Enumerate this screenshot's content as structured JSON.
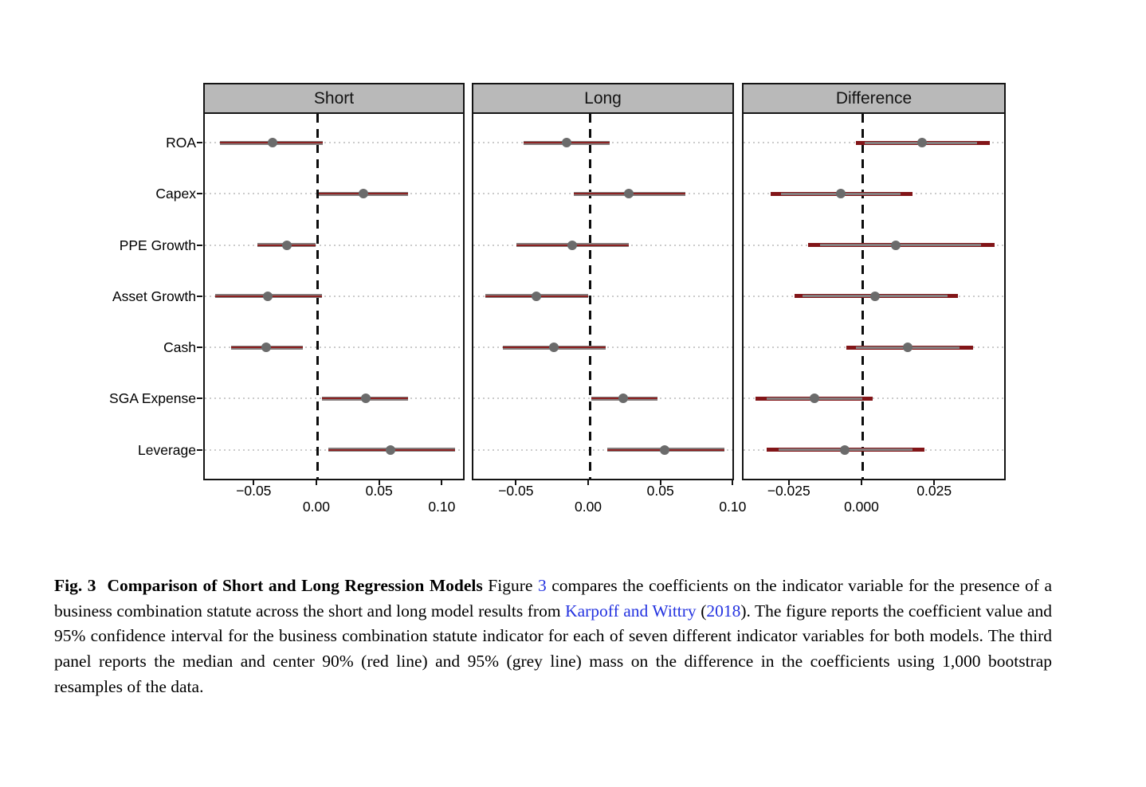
{
  "figure": {
    "panel_titles": [
      "Short",
      "Long",
      "Difference"
    ],
    "categories": [
      "ROA",
      "Capex",
      "PPE Growth",
      "Asset Growth",
      "Cash",
      "SGA Expense",
      "Leverage"
    ]
  },
  "colors": {
    "header_fill": "#b9b9b9",
    "panel_border": "#141414",
    "grey_band": "#857d7d",
    "red_band": "#8b2222",
    "diff_red_band": "#821518",
    "dot": "#6b6b6b",
    "gridline": "#cbcbcb",
    "link_blue": "#2433e0"
  },
  "chart_data": {
    "type": "scatter",
    "subtype": "forest-interval-plot",
    "title": "Comparison of Short and Long Regression Models",
    "categories": [
      "ROA",
      "Capex",
      "PPE Growth",
      "Asset Growth",
      "Cash",
      "SGA Expense",
      "Leverage"
    ],
    "legend_note": "grey dot = coefficient / median; short & long panels: grey band with red centre = 95% CI; difference panel: red band = center 90% mass, grey band = 95% mass (per caption)",
    "panels": [
      {
        "title": "Short",
        "xlim": [
          -0.0902,
          0.1182
        ],
        "ticks": [
          -0.05,
          0.0,
          0.05,
          0.1
        ],
        "tick_labels": [
          "−0.05",
          "0.00",
          "0.05",
          "0.10"
        ],
        "tick_rows": [
          "upper",
          "lower",
          "upper",
          "lower"
        ],
        "rows": [
          {
            "category": "ROA",
            "estimate": -0.036,
            "ci95": [
              -0.078,
              0.004
            ]
          },
          {
            "category": "Capex",
            "estimate": 0.036,
            "ci95": [
              0.0005,
              0.072
            ]
          },
          {
            "category": "PPE Growth",
            "estimate": -0.025,
            "ci95": [
              -0.048,
              -0.002
            ]
          },
          {
            "category": "Asset Growth",
            "estimate": -0.04,
            "ci95": [
              -0.082,
              0.003
            ]
          },
          {
            "category": "Cash",
            "estimate": -0.041,
            "ci95": [
              -0.069,
              -0.012
            ]
          },
          {
            "category": "SGA Expense",
            "estimate": 0.038,
            "ci95": [
              0.003,
              0.072
            ]
          },
          {
            "category": "Leverage",
            "estimate": 0.058,
            "ci95": [
              0.008,
              0.109
            ]
          }
        ]
      },
      {
        "title": "Long",
        "xlim": [
          -0.0805,
          0.1009
        ],
        "ticks": [
          -0.05,
          0.0,
          0.05,
          0.1
        ],
        "tick_labels": [
          "−0.05",
          "0.00",
          "0.05",
          "0.10"
        ],
        "tick_rows": [
          "upper",
          "lower",
          "upper",
          "lower"
        ],
        "rows": [
          {
            "category": "ROA",
            "estimate": -0.016,
            "ci95": [
              -0.046,
              0.014
            ]
          },
          {
            "category": "Capex",
            "estimate": 0.027,
            "ci95": [
              -0.011,
              0.066
            ]
          },
          {
            "category": "PPE Growth",
            "estimate": -0.012,
            "ci95": [
              -0.051,
              0.027
            ]
          },
          {
            "category": "Asset Growth",
            "estimate": -0.037,
            "ci95": [
              -0.072,
              -0.001
            ]
          },
          {
            "category": "Cash",
            "estimate": -0.025,
            "ci95": [
              -0.06,
              0.011
            ]
          },
          {
            "category": "SGA Expense",
            "estimate": 0.023,
            "ci95": [
              0.001,
              0.047
            ]
          },
          {
            "category": "Leverage",
            "estimate": 0.052,
            "ci95": [
              0.012,
              0.093
            ]
          }
        ]
      },
      {
        "title": "Difference",
        "xlim": [
          -0.0411,
          0.0496
        ],
        "ticks": [
          -0.025,
          0.0,
          0.025
        ],
        "tick_labels": [
          "−0.025",
          "0.000",
          "0.025"
        ],
        "tick_rows": [
          "upper",
          "lower",
          "upper"
        ],
        "rows": [
          {
            "category": "ROA",
            "median": 0.0203,
            "band_red": [
              -0.0026,
              0.0437
            ],
            "band_grey": [
              0.0006,
              0.0391
            ]
          },
          {
            "category": "Capex",
            "median": -0.0076,
            "band_red": [
              -0.0319,
              0.0171
            ],
            "band_grey": [
              -0.0282,
              0.013
            ]
          },
          {
            "category": "PPE Growth",
            "median": 0.0112,
            "band_red": [
              -0.019,
              0.0451
            ],
            "band_grey": [
              -0.0149,
              0.0405
            ]
          },
          {
            "category": "Asset Growth",
            "median": 0.004,
            "band_red": [
              -0.0236,
              0.0327
            ],
            "band_grey": [
              -0.0209,
              0.029
            ]
          },
          {
            "category": "Cash",
            "median": 0.0153,
            "band_red": [
              -0.0058,
              0.0377
            ],
            "band_grey": [
              -0.0026,
              0.0332
            ]
          },
          {
            "category": "SGA Expense",
            "median": -0.0168,
            "band_red": [
              -0.0369,
              0.0034
            ],
            "band_grey": [
              -0.0332,
              -0.0003
            ]
          },
          {
            "category": "Leverage",
            "median": -0.0064,
            "band_red": [
              -0.0332,
              0.0212
            ],
            "band_grey": [
              -0.0291,
              0.0171
            ]
          }
        ]
      }
    ]
  },
  "caption": {
    "segments": [
      {
        "name": "caption-fig-number",
        "style": "bold",
        "text": "Fig. 3"
      },
      {
        "name": "caption-fig-title",
        "style": "bold-gap",
        "text": "Comparison of Short and Long Regression Models"
      },
      {
        "name": "caption-text-1",
        "style": "normal",
        "text": " Figure "
      },
      {
        "name": "figure-ref-link",
        "style": "link",
        "text": "3"
      },
      {
        "name": "caption-text-2",
        "style": "normal",
        "text": " compares the coefficients on the indicator variable for the presence of a business combination statute across the short and long model results from "
      },
      {
        "name": "citation-link",
        "style": "link",
        "text": "Karpoff and Wittry"
      },
      {
        "name": "caption-text-3",
        "style": "normal",
        "text": " ("
      },
      {
        "name": "citation-year-link",
        "style": "link",
        "text": "2018"
      },
      {
        "name": "caption-text-4",
        "style": "normal",
        "text": "). The figure reports the coefficient value and 95% confidence interval for the business combination statute indicator for each of seven different indicator variables for both models. The third panel reports the median and center 90% (red line) and 95% (grey line) mass on the difference in the coefficients using 1,000 bootstrap resamples of the data."
      }
    ]
  }
}
